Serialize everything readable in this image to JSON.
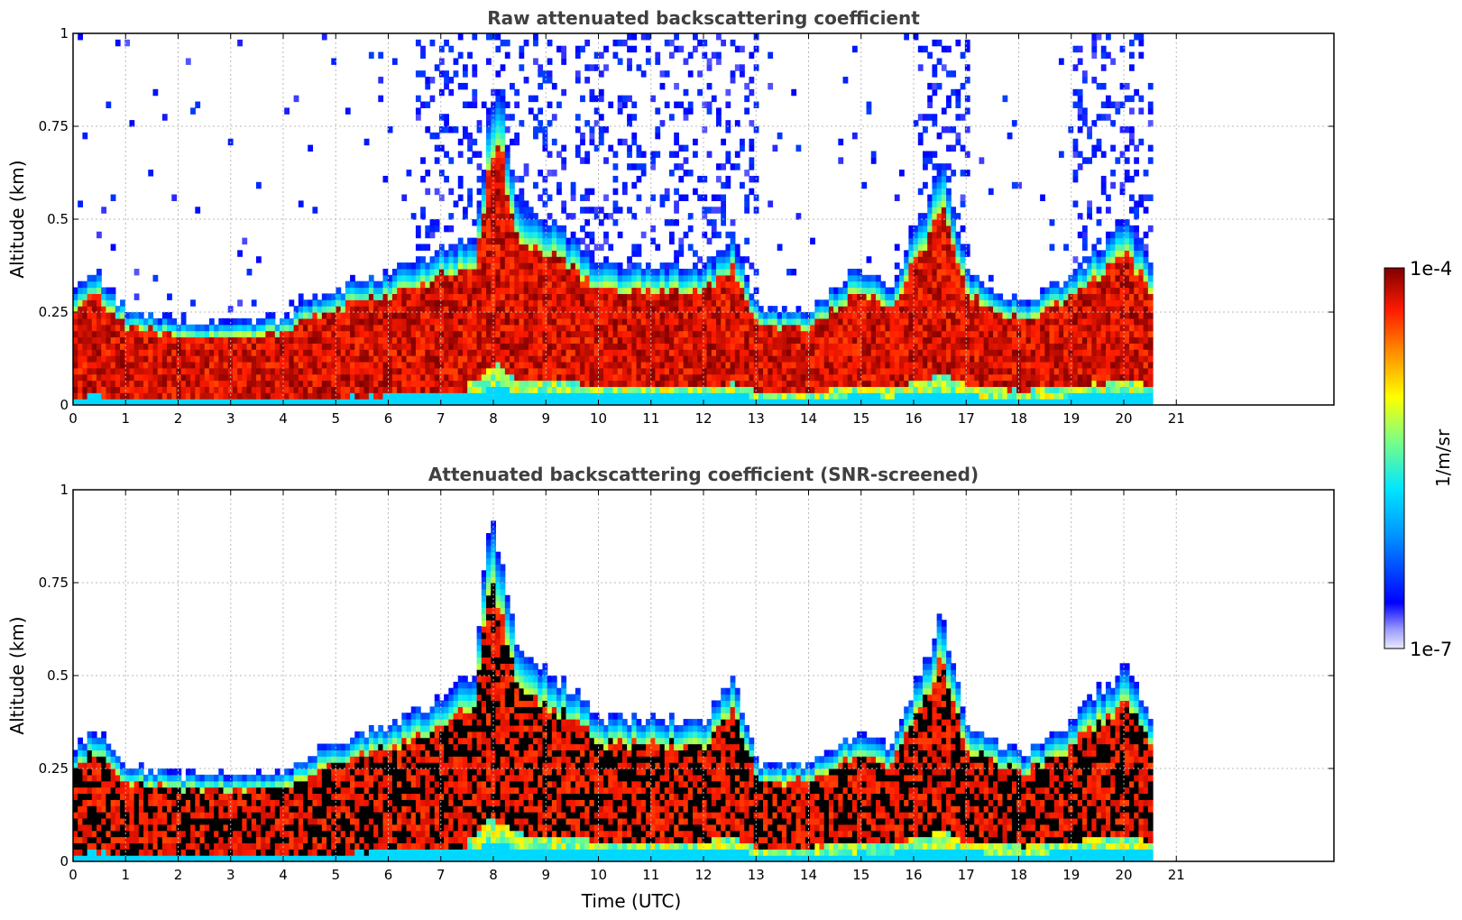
{
  "chart_data": [
    {
      "type": "heatmap",
      "title": "Raw attenuated backscattering coefficient",
      "xlabel": "",
      "ylabel": "Altitude (km)",
      "xlim": [
        0,
        24
      ],
      "ylim": [
        0,
        1
      ],
      "x_ticks": [
        "0",
        "1",
        "2",
        "3",
        "4",
        "5",
        "6",
        "7",
        "8",
        "9",
        "10",
        "11",
        "12",
        "13",
        "14",
        "15",
        "16",
        "17",
        "18",
        "19",
        "20",
        "21"
      ],
      "y_ticks": [
        "0",
        "0.25",
        "0.5",
        "0.75",
        "1"
      ],
      "grid": true,
      "data_extent_time_utc": [
        0,
        20.55
      ],
      "boundary_layer_top_km": {
        "time_utc": [
          0,
          0.4,
          1,
          2,
          3,
          4,
          4.7,
          5.5,
          6.5,
          7,
          7.6,
          8,
          8.5,
          9,
          10,
          11,
          12,
          12.5,
          13,
          14,
          14.9,
          15.5,
          16.5,
          17,
          18,
          19,
          20,
          20.55
        ],
        "altitude_km": [
          0.3,
          0.35,
          0.25,
          0.22,
          0.22,
          0.23,
          0.3,
          0.33,
          0.38,
          0.42,
          0.45,
          0.9,
          0.5,
          0.5,
          0.37,
          0.38,
          0.37,
          0.45,
          0.25,
          0.25,
          0.37,
          0.3,
          0.65,
          0.35,
          0.27,
          0.35,
          0.5,
          0.35
        ]
      }
    },
    {
      "type": "heatmap",
      "title": "Attenuated backscattering coefficient (SNR-screened)",
      "xlabel": "Time (UTC)",
      "ylabel": "Altitude (km)",
      "xlim": [
        0,
        24
      ],
      "ylim": [
        0,
        1
      ],
      "x_ticks": [
        "0",
        "1",
        "2",
        "3",
        "4",
        "5",
        "6",
        "7",
        "8",
        "9",
        "10",
        "11",
        "12",
        "13",
        "14",
        "15",
        "16",
        "17",
        "18",
        "19",
        "20",
        "21"
      ],
      "y_ticks": [
        "0",
        "0.25",
        "0.5",
        "0.75",
        "1"
      ],
      "grid": true,
      "data_extent_time_utc": [
        0,
        20.55
      ],
      "boundary_layer_top_km": {
        "time_utc": [
          0,
          0.4,
          1,
          2,
          3,
          4,
          4.7,
          5.5,
          6.5,
          7,
          7.6,
          7.9,
          8.5,
          9,
          10,
          11,
          12,
          12.5,
          13,
          14,
          14.9,
          15.5,
          16.5,
          17,
          18,
          19,
          20,
          20.55
        ],
        "altitude_km": [
          0.3,
          0.35,
          0.25,
          0.23,
          0.23,
          0.24,
          0.3,
          0.34,
          0.4,
          0.44,
          0.5,
          0.92,
          0.55,
          0.52,
          0.38,
          0.39,
          0.37,
          0.5,
          0.25,
          0.26,
          0.35,
          0.3,
          0.66,
          0.36,
          0.28,
          0.38,
          0.53,
          0.36
        ]
      }
    }
  ],
  "colorbar": {
    "min_label": "1e-7",
    "max_label": "1e-4",
    "unit_label": "1/m/sr",
    "colormap": "jet",
    "scale": "log"
  }
}
